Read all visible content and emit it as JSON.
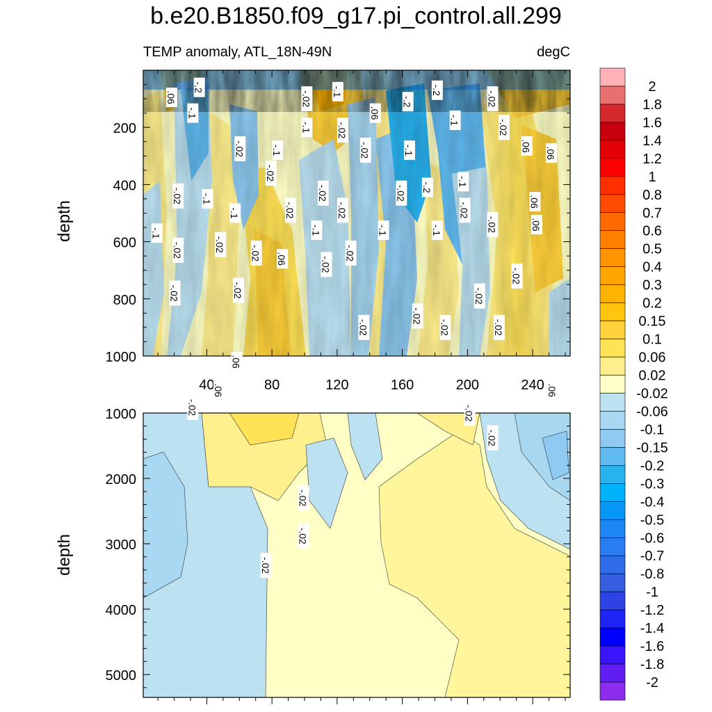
{
  "figure": {
    "title": "b.e20.B1850.f09_g17.pi_control.all.299",
    "left_subtitle": "TEMP anomaly, ATL_18N-49N",
    "right_subtitle": "degC"
  },
  "chart_data": [
    {
      "type": "heatmap",
      "panel": "upper",
      "ylabel": "depth",
      "xlabel": "",
      "ylim": [
        1000,
        0
      ],
      "xlim": [
        1,
        263
      ],
      "xticks": [
        40,
        80,
        120,
        160,
        200,
        240
      ],
      "yticks": [
        200,
        400,
        600,
        800,
        1000
      ],
      "contour_labels": [
        {
          "text": "-.2",
          "x": 35,
          "y": 60
        },
        {
          "text": ".06",
          "x": 18,
          "y": 95
        },
        {
          "text": "-.1",
          "x": 31,
          "y": 150
        },
        {
          "text": "-.02",
          "x": 101,
          "y": 100
        },
        {
          "text": "-.1",
          "x": 120,
          "y": 75
        },
        {
          "text": ".06",
          "x": 143,
          "y": 150
        },
        {
          "text": "-.2",
          "x": 163,
          "y": 110
        },
        {
          "text": "-.2",
          "x": 181,
          "y": 70
        },
        {
          "text": "-.02",
          "x": 215,
          "y": 100
        },
        {
          "text": "-.1",
          "x": 101,
          "y": 200
        },
        {
          "text": "-.02",
          "x": 123,
          "y": 210
        },
        {
          "text": "-.02",
          "x": 137,
          "y": 280
        },
        {
          "text": "-.1",
          "x": 164,
          "y": 280
        },
        {
          "text": "-.1",
          "x": 192,
          "y": 175
        },
        {
          "text": "-.02",
          "x": 222,
          "y": 200
        },
        {
          "text": ".06",
          "x": 236,
          "y": 265
        },
        {
          "text": ".06",
          "x": 251,
          "y": 290
        },
        {
          "text": "-.02",
          "x": 60,
          "y": 275
        },
        {
          "text": "-.1",
          "x": 83,
          "y": 280
        },
        {
          "text": "-.02",
          "x": 22,
          "y": 440
        },
        {
          "text": "-.02",
          "x": 79,
          "y": 360
        },
        {
          "text": "-.1",
          "x": 40,
          "y": 450
        },
        {
          "text": "-.1",
          "x": 57,
          "y": 500
        },
        {
          "text": "-.02",
          "x": 91,
          "y": 490
        },
        {
          "text": "-.02",
          "x": 111,
          "y": 430
        },
        {
          "text": "-.02",
          "x": 123,
          "y": 490
        },
        {
          "text": "-.02",
          "x": 159,
          "y": 430
        },
        {
          "text": "-.2",
          "x": 175,
          "y": 410
        },
        {
          "text": "-.1",
          "x": 197,
          "y": 390
        },
        {
          "text": ".06",
          "x": 241,
          "y": 460
        },
        {
          "text": "-.1",
          "x": 9,
          "y": 570
        },
        {
          "text": "-.02",
          "x": 22,
          "y": 630
        },
        {
          "text": "-.1",
          "x": 107,
          "y": 560
        },
        {
          "text": "-.1",
          "x": 148,
          "y": 560
        },
        {
          "text": "-.1",
          "x": 181,
          "y": 560
        },
        {
          "text": "-.02",
          "x": 198,
          "y": 490
        },
        {
          "text": "-.02",
          "x": 215,
          "y": 540
        },
        {
          "text": ".06",
          "x": 242,
          "y": 540
        },
        {
          "text": "-.02",
          "x": 48,
          "y": 610
        },
        {
          "text": "-.02",
          "x": 70,
          "y": 640
        },
        {
          "text": ".06",
          "x": 86,
          "y": 660
        },
        {
          "text": "-.02",
          "x": 113,
          "y": 680
        },
        {
          "text": "-.02",
          "x": 128,
          "y": 640
        },
        {
          "text": "-.02",
          "x": 230,
          "y": 720
        },
        {
          "text": "-.02",
          "x": 20,
          "y": 780
        },
        {
          "text": "-.02",
          "x": 59,
          "y": 770
        },
        {
          "text": "-.02",
          "x": 207,
          "y": 790
        },
        {
          "text": "-.02",
          "x": 169,
          "y": 860
        },
        {
          "text": "-.02",
          "x": 136,
          "y": 900
        },
        {
          "text": "-.02",
          "x": 186,
          "y": 900
        },
        {
          "text": "-.02",
          "x": 219,
          "y": 900
        },
        {
          "text": ".06",
          "x": 58,
          "y": 1020
        },
        {
          "text": ".06",
          "x": 47,
          "y": 1120
        },
        {
          "text": "-.02",
          "x": 31,
          "y": 1180
        },
        {
          "text": "-.02",
          "x": 201,
          "y": 1200
        },
        {
          "text": ".06",
          "x": 252,
          "y": 1120
        }
      ]
    },
    {
      "type": "heatmap",
      "panel": "lower",
      "ylabel": "depth",
      "xlabel": "",
      "ylim": [
        5350,
        1000
      ],
      "xlim": [
        1,
        263
      ],
      "yticks": [
        2000,
        3000,
        4000,
        5000
      ],
      "contour_labels": [
        {
          "text": "-.02",
          "x": 215,
          "y": 1380
        },
        {
          "text": "-.02",
          "x": 99,
          "y": 2300
        },
        {
          "text": "-.02",
          "x": 99,
          "y": 2880
        },
        {
          "text": "-.02",
          "x": 76,
          "y": 3330
        }
      ]
    }
  ],
  "colorbar": {
    "labels": [
      "2",
      "1.8",
      "1.6",
      "1.4",
      "1.2",
      "1",
      "0.8",
      "0.7",
      "0.6",
      "0.5",
      "0.4",
      "0.3",
      "0.2",
      "0.15",
      "0.1",
      "0.06",
      "0.02",
      "-0.02",
      "-0.06",
      "-0.1",
      "-0.15",
      "-0.2",
      "-0.3",
      "-0.4",
      "-0.5",
      "-0.6",
      "-0.7",
      "-0.8",
      "-1",
      "-1.2",
      "-1.4",
      "-1.6",
      "-1.8",
      "-2"
    ],
    "colors": [
      "#ffb2b7",
      "#ea7070",
      "#d42a2d",
      "#c8000e",
      "#e30005",
      "#ff0000",
      "#ff2f00",
      "#ff4b00",
      "#ff6a00",
      "#ff7f00",
      "#ff9500",
      "#ffa600",
      "#ffb400",
      "#ffc40e",
      "#ffd13a",
      "#ffe256",
      "#ffef8d",
      "#ffffc5",
      "#bce2f2",
      "#a7d7f1",
      "#8ecaf1",
      "#61bbf1",
      "#28b2ee",
      "#00b2f9",
      "#0997f7",
      "#1c87f4",
      "#2a7cf2",
      "#2f6cea",
      "#365dde",
      "#2d43e3",
      "#2025f5",
      "#0000ff",
      "#3a14fb",
      "#611ef2",
      "#8c2ded"
    ]
  }
}
